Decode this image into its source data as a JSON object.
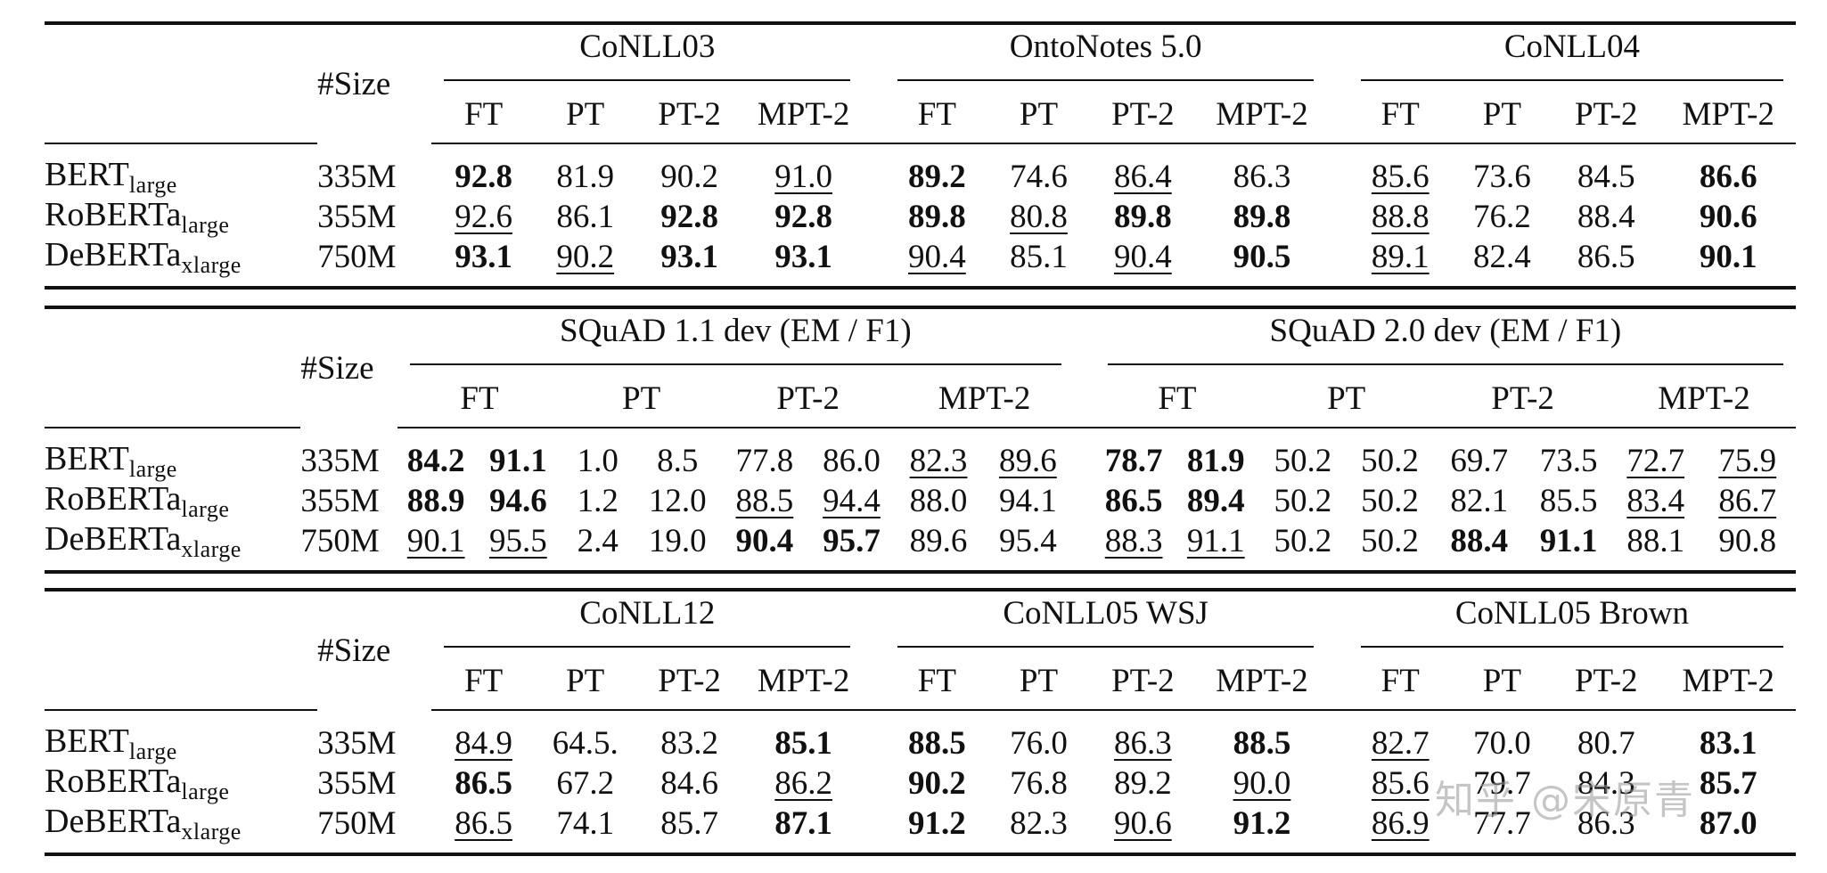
{
  "size_header": "#Size",
  "tables": [
    {
      "kind": "four",
      "groups": [
        "CoNLL03",
        "OntoNotes 5.0",
        "CoNLL04"
      ],
      "cols": [
        "FT",
        "PT",
        "PT-2",
        "MPT-2"
      ],
      "rows": [
        {
          "model": "BERT",
          "sub": "large",
          "size": "335M",
          "cells": [
            [
              "92.8",
              "b"
            ],
            [
              "81.9",
              ""
            ],
            [
              "90.2",
              ""
            ],
            [
              "91.0",
              "u"
            ],
            [
              "89.2",
              "b"
            ],
            [
              "74.6",
              ""
            ],
            [
              "86.4",
              "u"
            ],
            [
              "86.3",
              ""
            ],
            [
              "85.6",
              "u"
            ],
            [
              "73.6",
              ""
            ],
            [
              "84.5",
              ""
            ],
            [
              "86.6",
              "b"
            ]
          ]
        },
        {
          "model": "RoBERTa",
          "sub": "large",
          "size": "355M",
          "cells": [
            [
              "92.6",
              "u"
            ],
            [
              "86.1",
              ""
            ],
            [
              "92.8",
              "b"
            ],
            [
              "92.8",
              "b"
            ],
            [
              "89.8",
              "b"
            ],
            [
              "80.8",
              "u"
            ],
            [
              "89.8",
              "b"
            ],
            [
              "89.8",
              "b"
            ],
            [
              "88.8",
              "u"
            ],
            [
              "76.2",
              ""
            ],
            [
              "88.4",
              ""
            ],
            [
              "90.6",
              "b"
            ]
          ]
        },
        {
          "model": "DeBERTa",
          "sub": "xlarge",
          "size": "750M",
          "cells": [
            [
              "93.1",
              "b"
            ],
            [
              "90.2",
              "u"
            ],
            [
              "93.1",
              "b"
            ],
            [
              "93.1",
              "b"
            ],
            [
              "90.4",
              "u"
            ],
            [
              "85.1",
              ""
            ],
            [
              "90.4",
              "u"
            ],
            [
              "90.5",
              "b"
            ],
            [
              "89.1",
              "u"
            ],
            [
              "82.4",
              ""
            ],
            [
              "86.5",
              ""
            ],
            [
              "90.1",
              "b"
            ]
          ]
        }
      ]
    },
    {
      "kind": "squad",
      "groups": [
        "SQuAD 1.1 dev (EM / F1)",
        "SQuAD 2.0 dev (EM / F1)"
      ],
      "cols": [
        "FT",
        "PT",
        "PT-2",
        "MPT-2"
      ],
      "rows": [
        {
          "model": "BERT",
          "sub": "large",
          "size": "335M",
          "cells": [
            [
              "84.2",
              "b"
            ],
            [
              "91.1",
              "b"
            ],
            [
              "1.0",
              ""
            ],
            [
              "8.5",
              ""
            ],
            [
              "77.8",
              ""
            ],
            [
              "86.0",
              ""
            ],
            [
              "82.3",
              "u"
            ],
            [
              "89.6",
              "u"
            ],
            [
              "78.7",
              "b"
            ],
            [
              "81.9",
              "b"
            ],
            [
              "50.2",
              ""
            ],
            [
              "50.2",
              ""
            ],
            [
              "69.7",
              ""
            ],
            [
              "73.5",
              ""
            ],
            [
              "72.7",
              "u"
            ],
            [
              "75.9",
              "u"
            ]
          ]
        },
        {
          "model": "RoBERTa",
          "sub": "large",
          "size": "355M",
          "cells": [
            [
              "88.9",
              "b"
            ],
            [
              "94.6",
              "b"
            ],
            [
              "1.2",
              ""
            ],
            [
              "12.0",
              ""
            ],
            [
              "88.5",
              "u"
            ],
            [
              "94.4",
              "u"
            ],
            [
              "88.0",
              ""
            ],
            [
              "94.1",
              ""
            ],
            [
              "86.5",
              "b"
            ],
            [
              "89.4",
              "b"
            ],
            [
              "50.2",
              ""
            ],
            [
              "50.2",
              ""
            ],
            [
              "82.1",
              ""
            ],
            [
              "85.5",
              ""
            ],
            [
              "83.4",
              "u"
            ],
            [
              "86.7",
              "u"
            ]
          ]
        },
        {
          "model": "DeBERTa",
          "sub": "xlarge",
          "size": "750M",
          "cells": [
            [
              "90.1",
              "u"
            ],
            [
              "95.5",
              "u"
            ],
            [
              "2.4",
              ""
            ],
            [
              "19.0",
              ""
            ],
            [
              "90.4",
              "b"
            ],
            [
              "95.7",
              "b"
            ],
            [
              "89.6",
              ""
            ],
            [
              "95.4",
              ""
            ],
            [
              "88.3",
              "u"
            ],
            [
              "91.1",
              "u"
            ],
            [
              "50.2",
              ""
            ],
            [
              "50.2",
              ""
            ],
            [
              "88.4",
              "b"
            ],
            [
              "91.1",
              "b"
            ],
            [
              "88.1",
              ""
            ],
            [
              "90.8",
              ""
            ]
          ]
        }
      ]
    },
    {
      "kind": "four",
      "groups": [
        "CoNLL12",
        "CoNLL05 WSJ",
        "CoNLL05 Brown"
      ],
      "cols": [
        "FT",
        "PT",
        "PT-2",
        "MPT-2"
      ],
      "rows": [
        {
          "model": "BERT",
          "sub": "large",
          "size": "335M",
          "cells": [
            [
              "84.9",
              "u"
            ],
            [
              "64.5.",
              ""
            ],
            [
              "83.2",
              ""
            ],
            [
              "85.1",
              "b"
            ],
            [
              "88.5",
              "b"
            ],
            [
              "76.0",
              ""
            ],
            [
              "86.3",
              "u"
            ],
            [
              "88.5",
              "b"
            ],
            [
              "82.7",
              "u"
            ],
            [
              "70.0",
              ""
            ],
            [
              "80.7",
              ""
            ],
            [
              "83.1",
              "b"
            ]
          ]
        },
        {
          "model": "RoBERTa",
          "sub": "large",
          "size": "355M",
          "cells": [
            [
              "86.5",
              "b"
            ],
            [
              "67.2",
              ""
            ],
            [
              "84.6",
              ""
            ],
            [
              "86.2",
              "u"
            ],
            [
              "90.2",
              "b"
            ],
            [
              "76.8",
              ""
            ],
            [
              "89.2",
              ""
            ],
            [
              "90.0",
              "u"
            ],
            [
              "85.6",
              "u"
            ],
            [
              "79.7",
              ""
            ],
            [
              "84.3",
              ""
            ],
            [
              "85.7",
              "b"
            ]
          ]
        },
        {
          "model": "DeBERTa",
          "sub": "xlarge",
          "size": "750M",
          "cells": [
            [
              "86.5",
              "u"
            ],
            [
              "74.1",
              ""
            ],
            [
              "85.7",
              ""
            ],
            [
              "87.1",
              "b"
            ],
            [
              "91.2",
              "b"
            ],
            [
              "82.3",
              ""
            ],
            [
              "90.6",
              "u"
            ],
            [
              "91.2",
              "b"
            ],
            [
              "86.9",
              "u"
            ],
            [
              "77.7",
              ""
            ],
            [
              "86.3",
              ""
            ],
            [
              "87.0",
              "b"
            ]
          ]
        }
      ]
    }
  ],
  "watermark": "知乎 @宋原青"
}
